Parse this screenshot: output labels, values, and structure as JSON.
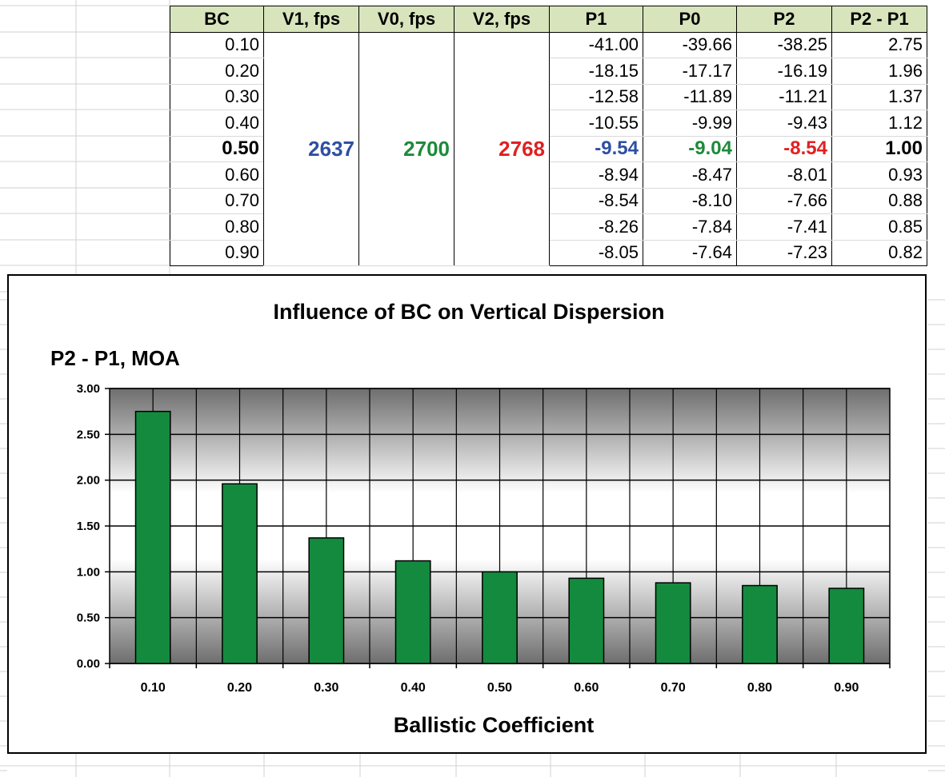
{
  "table": {
    "headers": [
      "BC",
      "V1, fps",
      "V0, fps",
      "V2, fps",
      "P1",
      "P0",
      "P2",
      "P2 - P1"
    ],
    "rows": [
      {
        "bc": "0.10",
        "p1": "-41.00",
        "p0": "-39.66",
        "p2": "-38.25",
        "diff": "2.75"
      },
      {
        "bc": "0.20",
        "p1": "-18.15",
        "p0": "-17.17",
        "p2": "-16.19",
        "diff": "1.96"
      },
      {
        "bc": "0.30",
        "p1": "-12.58",
        "p0": "-11.89",
        "p2": "-11.21",
        "diff": "1.37"
      },
      {
        "bc": "0.40",
        "p1": "-10.55",
        "p0": "-9.99",
        "p2": "-9.43",
        "diff": "1.12"
      },
      {
        "bc": "0.50",
        "p1": "-9.54",
        "p0": "-9.04",
        "p2": "-8.54",
        "diff": "1.00"
      },
      {
        "bc": "0.60",
        "p1": "-8.94",
        "p0": "-8.47",
        "p2": "-8.01",
        "diff": "0.93"
      },
      {
        "bc": "0.70",
        "p1": "-8.54",
        "p0": "-8.10",
        "p2": "-7.66",
        "diff": "0.88"
      },
      {
        "bc": "0.80",
        "p1": "-8.26",
        "p0": "-7.84",
        "p2": "-7.41",
        "diff": "0.85"
      },
      {
        "bc": "0.90",
        "p1": "-8.05",
        "p0": "-7.64",
        "p2": "-7.23",
        "diff": "0.82"
      }
    ],
    "v1": "2637",
    "v0": "2700",
    "v2": "2768",
    "highlight_row": 4,
    "colors": {
      "v1": "#2e4fa3",
      "v0": "#1e8a3a",
      "v2": "#e02020",
      "diff": "#000000"
    }
  },
  "chart_data": {
    "type": "bar",
    "title": "Influence of BC on Vertical Dispersion",
    "ylabel": "P2 - P1, MOA",
    "xlabel": "Ballistic Coefficient",
    "categories": [
      "0.10",
      "0.20",
      "0.30",
      "0.40",
      "0.50",
      "0.60",
      "0.70",
      "0.80",
      "0.90"
    ],
    "values": [
      2.75,
      1.96,
      1.37,
      1.12,
      1.0,
      0.93,
      0.88,
      0.85,
      0.82
    ],
    "ylim": [
      0,
      3
    ],
    "yticks": [
      "0.00",
      "0.50",
      "1.00",
      "1.50",
      "2.00",
      "2.50",
      "3.00"
    ],
    "grid": true,
    "bar_color": "#138a3e"
  }
}
